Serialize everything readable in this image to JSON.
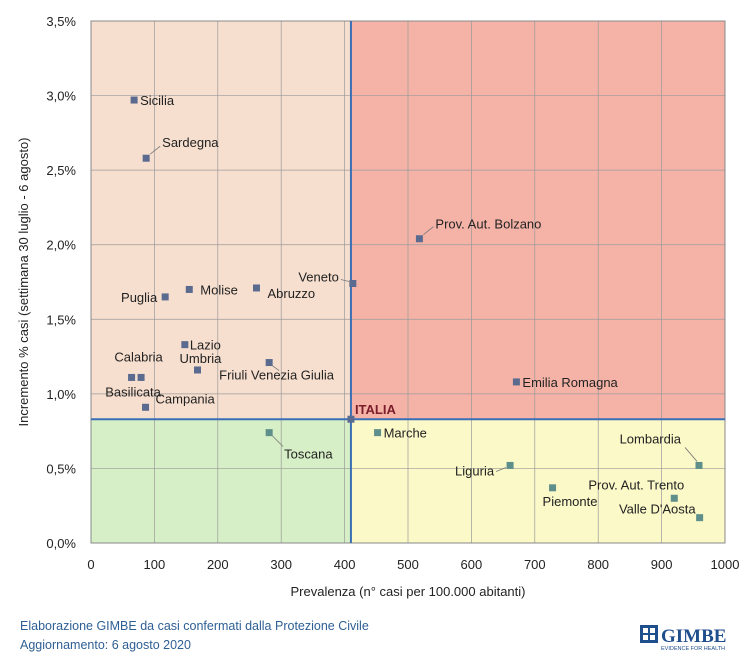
{
  "chart_data": {
    "type": "scatter",
    "xlabel": "Prevalenza  (n° casi per 100.000 abitanti)",
    "ylabel": "Incremento %  casi (settimana 30 luglio - 6 agosto)",
    "xlim": [
      0,
      1000
    ],
    "ylim": [
      0.0,
      3.5
    ],
    "x_ticks": [
      "0",
      "100",
      "200",
      "300",
      "400",
      "500",
      "600",
      "700",
      "800",
      "900",
      "1000"
    ],
    "y_ticks": [
      "0,0%",
      "0,5%",
      "1,0%",
      "1,5%",
      "2,0%",
      "2,5%",
      "3,0%",
      "3,5%"
    ],
    "grid": true,
    "reference": {
      "name": "ITALIA",
      "x": 410,
      "y": 0.83
    },
    "quadrant_colors": {
      "top_left": "#f7dfcf",
      "top_right": "#f5b3a8",
      "bottom_left": "#d6efc6",
      "bottom_right": "#fbf9c8"
    },
    "series": [
      {
        "name": "Sicilia",
        "x": 68,
        "y": 2.97,
        "quadrant": "top"
      },
      {
        "name": "Sardegna",
        "x": 87,
        "y": 2.58,
        "quadrant": "top"
      },
      {
        "name": "Prov. Aut. Bolzano",
        "x": 518,
        "y": 2.04,
        "quadrant": "top"
      },
      {
        "name": "Veneto",
        "x": 413,
        "y": 1.74,
        "quadrant": "top"
      },
      {
        "name": "Puglia",
        "x": 117,
        "y": 1.65,
        "quadrant": "top"
      },
      {
        "name": "Molise",
        "x": 155,
        "y": 1.7,
        "quadrant": "top"
      },
      {
        "name": "Abruzzo",
        "x": 261,
        "y": 1.71,
        "quadrant": "top"
      },
      {
        "name": "Lazio",
        "x": 148,
        "y": 1.33,
        "quadrant": "top"
      },
      {
        "name": "Umbria",
        "x": 168,
        "y": 1.16,
        "quadrant": "top"
      },
      {
        "name": "Friuli Venezia Giulia",
        "x": 281,
        "y": 1.21,
        "quadrant": "top"
      },
      {
        "name": "Calabria",
        "x": 64,
        "y": 1.11,
        "quadrant": "top"
      },
      {
        "name": "Basilicata",
        "x": 79,
        "y": 1.11,
        "quadrant": "top"
      },
      {
        "name": "Campania",
        "x": 86,
        "y": 0.91,
        "quadrant": "top"
      },
      {
        "name": "Emilia Romagna",
        "x": 671,
        "y": 1.08,
        "quadrant": "top"
      },
      {
        "name": "Toscana",
        "x": 281,
        "y": 0.74,
        "quadrant": "bottom"
      },
      {
        "name": "Marche",
        "x": 452,
        "y": 0.74,
        "quadrant": "bottom"
      },
      {
        "name": "Liguria",
        "x": 661,
        "y": 0.52,
        "quadrant": "bottom"
      },
      {
        "name": "Piemonte",
        "x": 728,
        "y": 0.37,
        "quadrant": "bottom"
      },
      {
        "name": "Lombardia",
        "x": 959,
        "y": 0.52,
        "quadrant": "bottom"
      },
      {
        "name": "Prov. Aut. Trento",
        "x": 920,
        "y": 0.3,
        "quadrant": "bottom"
      },
      {
        "name": "Valle D'Aosta",
        "x": 960,
        "y": 0.17,
        "quadrant": "bottom"
      }
    ]
  },
  "footer": {
    "line1": "Elaborazione GIMBE da casi confermati dalla Protezione Civile",
    "line2": "Aggiornamento: 6 agosto 2020"
  },
  "logo": {
    "text": "GIMBE",
    "tagline": "EVIDENCE FOR HEALTH",
    "color": "#1f4e8c"
  }
}
